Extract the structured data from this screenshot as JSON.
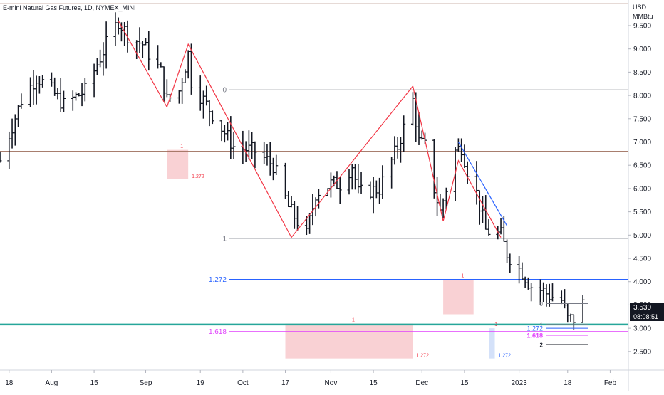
{
  "header": {
    "title": "E-mini Natural Gas Futures, 1D, NYMEX_MINI"
  },
  "axis_unit": {
    "currency": "USD",
    "unit": "MMBtu"
  },
  "last_price": {
    "value": "3.530",
    "countdown": "08:08:51"
  },
  "colors": {
    "bar": "#131722",
    "zigzag": "#f23645",
    "blue_leg": "#2962ff",
    "fib_gray": "#787b86",
    "fib_brown": "#9c6b5a",
    "fib_blue": "#2962ff",
    "fib_magenta": "#e040fb",
    "support": "#26a69a",
    "zone": "#f7c5c9",
    "zone_blue": "#c9d9f7",
    "grid": "#e0e3eb"
  },
  "chart_data": {
    "type": "candlestick-ohlc",
    "title": "E-mini Natural Gas Futures, 1D, NYMEX_MINI",
    "ylabel": "USD MMBtu",
    "ylim": [
      2.1,
      10.05
    ],
    "xlim": [
      "2022-07-15",
      "2023-02-07"
    ],
    "y_ticks": [
      "2.500",
      "3.000",
      "3.500",
      "4.000",
      "4.500",
      "5.000",
      "5.500",
      "6.000",
      "6.500",
      "7.000",
      "7.500",
      "8.000",
      "8.500",
      "9.000",
      "9.500"
    ],
    "x_ticks": [
      {
        "label": "18",
        "date": "2022-07-18"
      },
      {
        "label": "Aug",
        "date": "2022-08-01"
      },
      {
        "label": "15",
        "date": "2022-08-15"
      },
      {
        "label": "Sep",
        "date": "2022-09-01"
      },
      {
        "label": "19",
        "date": "2022-09-19"
      },
      {
        "label": "Oct",
        "date": "2022-10-03"
      },
      {
        "label": "17",
        "date": "2022-10-17"
      },
      {
        "label": "Nov",
        "date": "2022-11-01"
      },
      {
        "label": "15",
        "date": "2022-11-15"
      },
      {
        "label": "Dec",
        "date": "2022-12-01"
      },
      {
        "label": "15",
        "date": "2022-12-15"
      },
      {
        "label": "2023",
        "date": "2023-01-02"
      },
      {
        "label": "18",
        "date": "2023-01-18"
      },
      {
        "label": "Feb",
        "date": "2023-02-01"
      }
    ],
    "price_anchors": [
      [
        "2022-07-15",
        6.6
      ],
      [
        "2022-07-22",
        7.9
      ],
      [
        "2022-07-27",
        8.4
      ],
      [
        "2022-08-01",
        8.1
      ],
      [
        "2022-08-05",
        7.8
      ],
      [
        "2022-08-12",
        8.1
      ],
      [
        "2022-08-19",
        9.1
      ],
      [
        "2022-08-23",
        9.6
      ],
      [
        "2022-08-26",
        9.3
      ],
      [
        "2022-08-31",
        9.1
      ],
      [
        "2022-09-06",
        8.5
      ],
      [
        "2022-09-08",
        7.9
      ],
      [
        "2022-09-12",
        8.1
      ],
      [
        "2022-09-15",
        8.9
      ],
      [
        "2022-09-16",
        8.3
      ],
      [
        "2022-09-21",
        7.8
      ],
      [
        "2022-09-30",
        6.9
      ],
      [
        "2022-10-07",
        6.8
      ],
      [
        "2022-10-13",
        6.5
      ],
      [
        "2022-10-18",
        5.6
      ],
      [
        "2022-10-24",
        5.0
      ],
      [
        "2022-10-27",
        5.9
      ],
      [
        "2022-11-01",
        6.1
      ],
      [
        "2022-11-04",
        6.1
      ],
      [
        "2022-11-08",
        6.5
      ],
      [
        "2022-11-10",
        5.9
      ],
      [
        "2022-11-17",
        6.0
      ],
      [
        "2022-11-23",
        6.9
      ],
      [
        "2022-11-25",
        7.3
      ],
      [
        "2022-11-28",
        7.9
      ],
      [
        "2022-11-30",
        7.0
      ],
      [
        "2022-12-02",
        6.9
      ],
      [
        "2022-12-05",
        6.0
      ],
      [
        "2022-12-07",
        5.5
      ],
      [
        "2022-12-09",
        6.0
      ],
      [
        "2022-12-12",
        6.8
      ],
      [
        "2022-12-14",
        6.9
      ],
      [
        "2022-12-16",
        6.4
      ],
      [
        "2022-12-19",
        5.9
      ],
      [
        "2022-12-22",
        5.1
      ],
      [
        "2022-12-27",
        5.0
      ],
      [
        "2022-12-29",
        4.6
      ],
      [
        "2023-01-03",
        4.2
      ],
      [
        "2023-01-06",
        3.9
      ],
      [
        "2023-01-10",
        3.8
      ],
      [
        "2023-01-12",
        3.7
      ],
      [
        "2023-01-16",
        3.6
      ],
      [
        "2023-01-18",
        3.2
      ],
      [
        "2023-01-20",
        3.2
      ],
      [
        "2023-01-23",
        3.53
      ]
    ],
    "horizontal_levels": [
      {
        "label": "0",
        "value": 8.12
      },
      {
        "label": "",
        "value": 6.8
      },
      {
        "label": "1",
        "value": 4.93
      },
      {
        "label": "1.272",
        "value": 4.05
      },
      {
        "label": "1.618",
        "value": 2.93
      },
      {
        "label": "",
        "value": 3.08
      }
    ],
    "mini_fib_labels": [
      "0",
      "1",
      "1.272",
      "1.618",
      "2"
    ],
    "zone_labels": [
      {
        "top": "1",
        "bottom": "1.272"
      },
      {
        "top": "1",
        "bottom": "1.272"
      },
      {
        "top": "1",
        "bottom": ""
      },
      {
        "top": "1",
        "bottom": "1.272"
      }
    ],
    "zigzag": [
      [
        "2022-08-23",
        9.6
      ],
      [
        "2022-09-08",
        7.75
      ],
      [
        "2022-09-15",
        9.1
      ],
      [
        "2022-10-19",
        4.95
      ],
      [
        "2022-11-28",
        8.2
      ],
      [
        "2022-12-08",
        5.3
      ],
      [
        "2022-12-13",
        6.6
      ],
      [
        "2022-12-27",
        4.95
      ]
    ],
    "blue_leg": [
      [
        "2022-12-13",
        7.0
      ],
      [
        "2022-12-29",
        5.2
      ]
    ]
  }
}
